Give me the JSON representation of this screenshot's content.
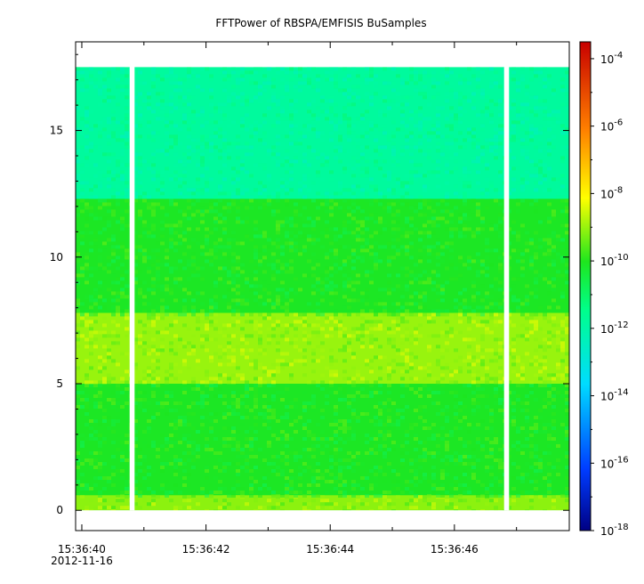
{
  "chart_data": {
    "type": "heatmap",
    "title": "FFTPower of RBSPA/EMFISIS  BuSamples",
    "xlabel": "",
    "ylabel": "",
    "x_ticks": [
      {
        "t": 0.1,
        "label": "15:36:40",
        "sublabel": "2012-11-16"
      },
      {
        "t": 2.1,
        "label": "15:36:42"
      },
      {
        "t": 4.1,
        "label": "15:36:44"
      },
      {
        "t": 6.1,
        "label": "15:36:46"
      }
    ],
    "x_minor_ticks": [
      1.1,
      3.1,
      5.1,
      7.1
    ],
    "xlim": [
      0,
      7.95
    ],
    "ylim": [
      -0.8,
      18.5
    ],
    "y_ticks": [
      0,
      5,
      10,
      15
    ],
    "data_extent_y": [
      0,
      17.5
    ],
    "data_gaps_x": [
      [
        0.87,
        0.95
      ],
      [
        6.9,
        6.98
      ]
    ],
    "bands": [
      {
        "y_range": [
          0,
          0.6
        ],
        "log_power": -9.1
      },
      {
        "y_range": [
          0.6,
          5
        ],
        "log_power": -10.1
      },
      {
        "y_range": [
          5,
          7.8
        ],
        "log_power": -9.0
      },
      {
        "y_range": [
          7.8,
          12.3
        ],
        "log_power": -10.1
      },
      {
        "y_range": [
          12.3,
          17.5
        ],
        "log_power": -11.8
      }
    ],
    "colorbar": {
      "scale": "log",
      "range": [
        -18,
        -3.5
      ],
      "tick_exponents": [
        -4,
        -6,
        -8,
        -10,
        -12,
        -14,
        -16,
        -18
      ],
      "tick_labels": [
        "10-4",
        "10-6",
        "10-8",
        "10-10",
        "10-12",
        "10-14",
        "10-16",
        "10-18"
      ]
    },
    "grid": false
  }
}
